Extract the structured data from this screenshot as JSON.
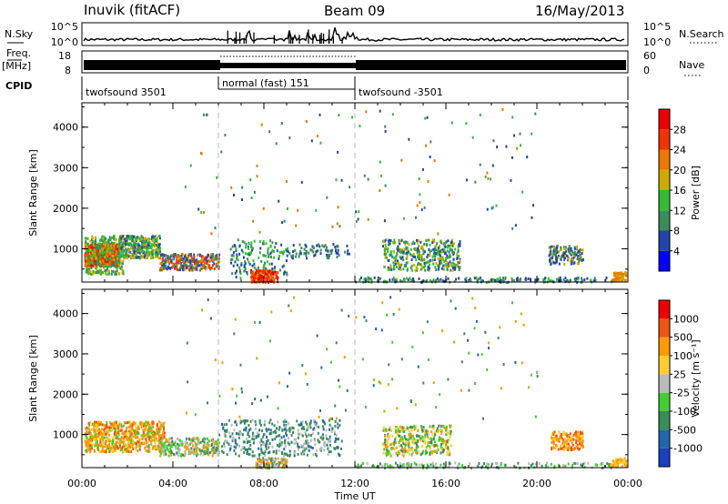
{
  "header": {
    "station": "Inuvik (fitACF)",
    "beam": "Beam 09",
    "date": "16/May/2013"
  },
  "strips": {
    "nsky_label": "N.Sky",
    "nsky_ticks": [
      "10^5",
      "10^0"
    ],
    "nsearch_label": "N.Search",
    "nsearch_ticks": [
      "10^5",
      "10^0"
    ],
    "freq_label_1": "Freq.",
    "freq_label_2": "[MHz]",
    "freq_ticks": [
      "18",
      "8"
    ],
    "nave_label": "Nave",
    "nave_ticks": [
      "60",
      "0"
    ],
    "cpid_label": "CPID",
    "cpid_segments": [
      {
        "label": "twofsound 3501",
        "start": 0,
        "end": 6
      },
      {
        "label": "normal (fast) 151",
        "start": 6,
        "end": 12
      },
      {
        "label": "twofsound -3501",
        "start": 12,
        "end": 24
      }
    ]
  },
  "chart_data": [
    {
      "type": "heatmap",
      "ylabel": "Slant Range [km]",
      "xlim": [
        0,
        24
      ],
      "ylim": [
        180,
        4600
      ],
      "yticks": [
        "1000",
        "2000",
        "3000",
        "4000"
      ],
      "colorbar_label": "Power [dB]",
      "colorbar_ticks": [
        "4",
        "8",
        "12",
        "16",
        "20",
        "24",
        "28"
      ],
      "colorbar_colors": [
        "#0000ff",
        "#2244aa",
        "#3a8c5a",
        "#33bb33",
        "#ccaa00",
        "#ee7700",
        "#ee3300",
        "#ee0000"
      ]
    },
    {
      "type": "heatmap",
      "ylabel": "Slant Range [km]",
      "xlabel": "Time UT",
      "xlim": [
        0,
        24
      ],
      "ylim": [
        180,
        4600
      ],
      "xticks": [
        "00:00",
        "04:00",
        "08:00",
        "12:00",
        "16:00",
        "20:00",
        "00:00"
      ],
      "yticks": [
        "1000",
        "2000",
        "3000",
        "4000"
      ],
      "colorbar_label": "Velocity [m s⁻¹]",
      "colorbar_ticks": [
        "1000",
        "500",
        "100",
        "25",
        "-25",
        "-100",
        "-500",
        "-1000"
      ],
      "colorbar_colors": [
        "#1a3fbf",
        "#2266aa",
        "#3a8c5a",
        "#44cc33",
        "#bbbbbb",
        "#ffcc33",
        "#ff9900",
        "#ee5511",
        "#ee0000"
      ]
    }
  ]
}
